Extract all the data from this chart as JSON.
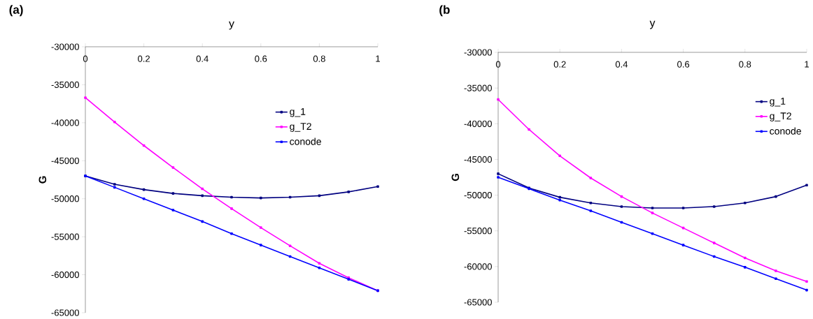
{
  "chart_data": [
    {
      "type": "line",
      "title": "(a)",
      "xlabel": "y",
      "ylabel": "G",
      "x": [
        0,
        0.1,
        0.2,
        0.3,
        0.4,
        0.5,
        0.6,
        0.7,
        0.8,
        0.9,
        1
      ],
      "series": [
        {
          "name": "g_1",
          "color": "#000080",
          "values": [
            -47000,
            -48100,
            -48800,
            -49300,
            -49600,
            -49800,
            -49900,
            -49800,
            -49600,
            -49100,
            -48400
          ]
        },
        {
          "name": "g_T2",
          "color": "#ff00ff",
          "values": [
            -36700,
            -39900,
            -43000,
            -45900,
            -48700,
            -51300,
            -53800,
            -56200,
            -58500,
            -60400,
            -62100
          ]
        },
        {
          "name": "conode",
          "color": "#0000ff",
          "values": [
            -47000,
            -48500,
            -50000,
            -51500,
            -53000,
            -54600,
            -56100,
            -57600,
            -59100,
            -60600,
            -62100
          ]
        }
      ],
      "xlim": [
        0,
        1
      ],
      "ylim": [
        -65000,
        -30000
      ],
      "xticks": [
        0,
        0.2,
        0.4,
        0.6,
        0.8,
        1
      ],
      "yticks": [
        -65000,
        -60000,
        -55000,
        -50000,
        -45000,
        -40000,
        -35000,
        -30000
      ],
      "legend": "top right",
      "marker": "square"
    },
    {
      "type": "line",
      "title": "(b",
      "xlabel": "y",
      "ylabel": "G",
      "x": [
        0,
        0.1,
        0.2,
        0.3,
        0.4,
        0.5,
        0.6,
        0.7,
        0.8,
        0.9,
        1
      ],
      "series": [
        {
          "name": "g_1",
          "color": "#000080",
          "values": [
            -47000,
            -49000,
            -50300,
            -51100,
            -51600,
            -51800,
            -51800,
            -51600,
            -51100,
            -50200,
            -48600
          ]
        },
        {
          "name": "g_T2",
          "color": "#ff00ff",
          "values": [
            -36600,
            -40800,
            -44500,
            -47600,
            -50200,
            -52500,
            -54600,
            -56700,
            -58800,
            -60600,
            -62100
          ]
        },
        {
          "name": "conode",
          "color": "#0000ff",
          "values": [
            -47500,
            -49100,
            -50700,
            -52200,
            -53800,
            -55400,
            -57000,
            -58600,
            -60100,
            -61700,
            -63300
          ]
        }
      ],
      "xlim": [
        0,
        1
      ],
      "ylim": [
        -65000,
        -30000
      ],
      "xticks": [
        0,
        0.2,
        0.4,
        0.6,
        0.8,
        1
      ],
      "yticks": [
        -65000,
        -60000,
        -55000,
        -50000,
        -45000,
        -40000,
        -35000,
        -30000
      ],
      "legend": "top right",
      "marker": "square"
    }
  ]
}
